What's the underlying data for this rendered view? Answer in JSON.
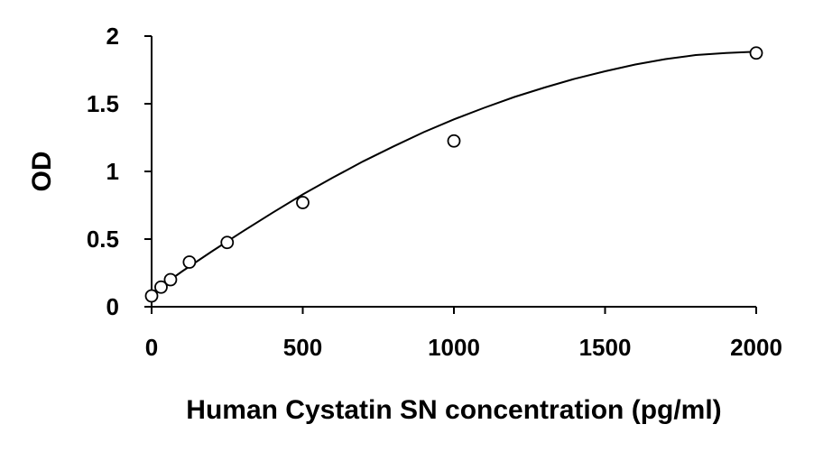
{
  "chart_data": {
    "type": "scatter",
    "title": "",
    "xlabel": "Human Cystatin SN concentration (pg/ml)",
    "ylabel": "OD",
    "xlim": [
      0,
      2000
    ],
    "ylim": [
      0,
      2
    ],
    "x_ticks": [
      0,
      500,
      1000,
      1500,
      2000
    ],
    "y_ticks": [
      0,
      0.5,
      1,
      1.5,
      2
    ],
    "x_tick_labels": [
      "0",
      "500",
      "1000",
      "1500",
      "2000"
    ],
    "y_tick_labels": [
      "0",
      "0.5",
      "1",
      "1.5",
      "2"
    ],
    "grid": false,
    "legend": "none",
    "series": [
      {
        "marker": "open-circle",
        "x": [
          0,
          31.25,
          62.5,
          125,
          250,
          500,
          1000,
          2000
        ],
        "y": [
          0.08,
          0.145,
          0.2,
          0.33,
          0.475,
          0.77,
          1.225,
          1.875
        ]
      }
    ],
    "fit_curve": {
      "x": [
        0,
        100,
        200,
        300,
        400,
        500,
        600,
        700,
        800,
        900,
        1000,
        1100,
        1200,
        1300,
        1400,
        1500,
        1600,
        1700,
        1800,
        1900,
        2000
      ],
      "y": [
        0.1,
        0.26,
        0.41,
        0.555,
        0.695,
        0.83,
        0.955,
        1.075,
        1.185,
        1.29,
        1.385,
        1.47,
        1.55,
        1.62,
        1.685,
        1.74,
        1.79,
        1.83,
        1.86,
        1.875,
        1.885
      ]
    }
  }
}
